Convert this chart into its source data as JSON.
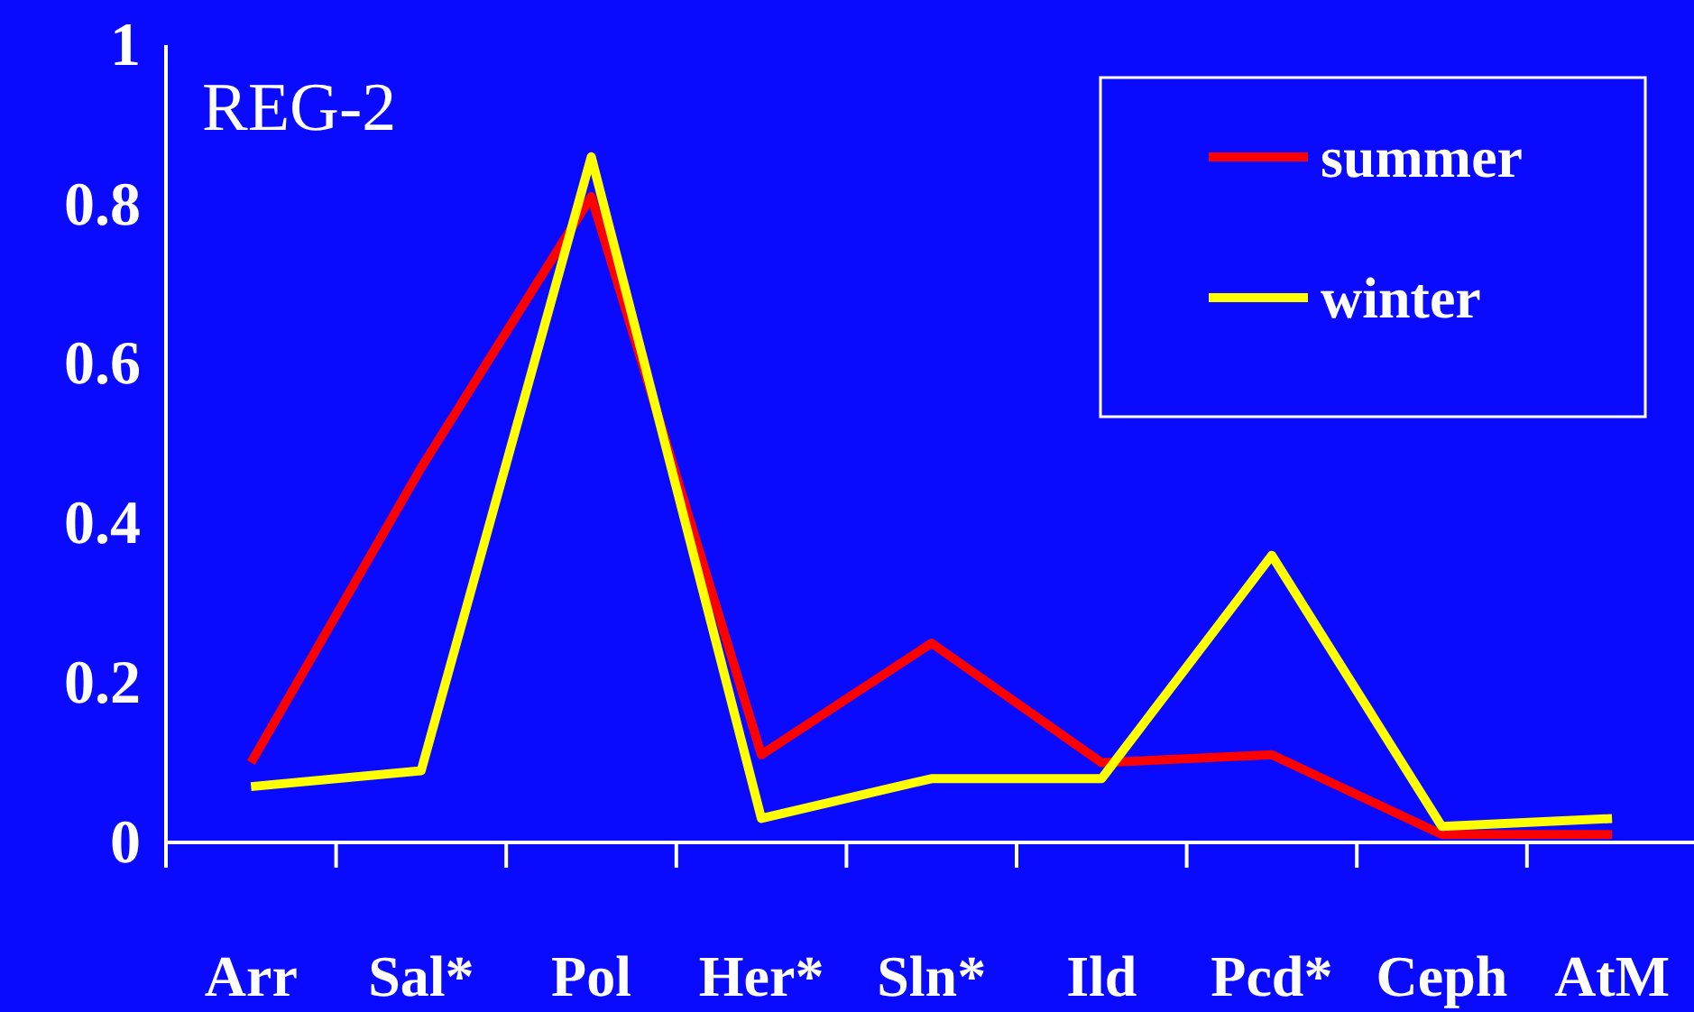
{
  "chart_data": {
    "type": "line",
    "categories": [
      "Arr",
      "Sal*",
      "Pol",
      "Her*",
      "Sln*",
      "Ild",
      "Pcd*",
      "Ceph",
      "AtM"
    ],
    "series": [
      {
        "name": "summer",
        "color": "#ff0000",
        "values": [
          0.1,
          0.47,
          0.81,
          0.11,
          0.25,
          0.1,
          0.11,
          0.01,
          0.01
        ]
      },
      {
        "name": "winter",
        "color": "#ffff00",
        "values": [
          0.07,
          0.09,
          0.86,
          0.03,
          0.08,
          0.08,
          0.36,
          0.02,
          0.03
        ]
      }
    ],
    "annotations": [
      "REG-2"
    ],
    "ylim": [
      0,
      1
    ],
    "yticks": [
      0,
      0.2,
      0.4,
      0.6,
      0.8,
      1
    ],
    "legend": "top right",
    "grid": false,
    "marker": "none",
    "line_style": "solid"
  }
}
